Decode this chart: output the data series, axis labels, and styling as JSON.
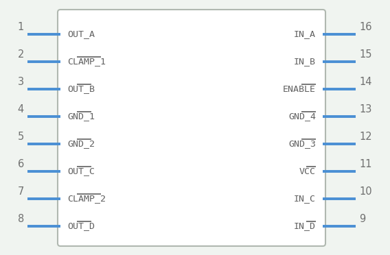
{
  "background_color": "#f0f4f0",
  "body_edge_color": "#b0b8b0",
  "body_fill": "#ffffff",
  "pin_color": "#4a8fd4",
  "text_color": "#606060",
  "number_color": "#707070",
  "left_pins": [
    {
      "num": 1,
      "label": "OUT_A",
      "bar_chars": ""
    },
    {
      "num": 2,
      "label": "CLAMP_1",
      "bar_chars": "AMP_1"
    },
    {
      "num": 3,
      "label": "OUT_B",
      "bar_chars": "T_B"
    },
    {
      "num": 4,
      "label": "GND_1",
      "bar_chars": "D_1"
    },
    {
      "num": 5,
      "label": "GND_2",
      "bar_chars": "D_2"
    },
    {
      "num": 6,
      "label": "OUT_C",
      "bar_chars": "T_C"
    },
    {
      "num": 7,
      "label": "CLAMP_2",
      "bar_chars": "AMP_2"
    },
    {
      "num": 8,
      "label": "OUT_D",
      "bar_chars": "T_D"
    }
  ],
  "right_pins": [
    {
      "num": 16,
      "label": "IN_A",
      "bar_chars": ""
    },
    {
      "num": 15,
      "label": "IN_B",
      "bar_chars": ""
    },
    {
      "num": 14,
      "label": "ENABLE",
      "bar_chars": "BLE"
    },
    {
      "num": 13,
      "label": "GND_4",
      "bar_chars": "D_4"
    },
    {
      "num": 12,
      "label": "GND_3",
      "bar_chars": "D_3"
    },
    {
      "num": 11,
      "label": "VCC",
      "bar_chars": "CC"
    },
    {
      "num": 10,
      "label": "IN_C",
      "bar_chars": ""
    },
    {
      "num": 9,
      "label": "IN_D",
      "bar_chars": "_D"
    }
  ]
}
